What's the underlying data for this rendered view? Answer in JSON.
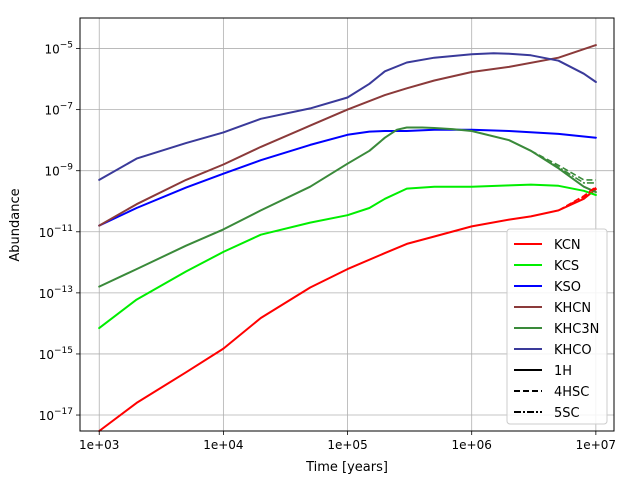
{
  "chart_data": {
    "type": "line",
    "title": "",
    "xlabel": "Time [years]",
    "ylabel": "Abundance",
    "x_scale": "log",
    "y_scale": "log",
    "xlim": [
      700,
      14000000
    ],
    "ylim": [
      3e-18,
      0.0001
    ],
    "x_ticks": [
      {
        "value": 1000,
        "label": "1e+03"
      },
      {
        "value": 10000,
        "label": "1e+04"
      },
      {
        "value": 100000,
        "label": "1e+05"
      },
      {
        "value": 1000000,
        "label": "1e+06"
      },
      {
        "value": 10000000,
        "label": "1e+07"
      }
    ],
    "y_ticks": [
      {
        "value": 1e-17,
        "base": "10",
        "exp": "−17"
      },
      {
        "value": 1e-15,
        "base": "10",
        "exp": "−15"
      },
      {
        "value": 1e-13,
        "base": "10",
        "exp": "−13"
      },
      {
        "value": 1e-11,
        "base": "10",
        "exp": "−11"
      },
      {
        "value": 1e-09,
        "base": "10",
        "exp": "−9"
      },
      {
        "value": 1e-07,
        "base": "10",
        "exp": "−7"
      },
      {
        "value": 1e-05,
        "base": "10",
        "exp": "−5"
      }
    ],
    "grid": true,
    "legend_position": "lower-right",
    "series": [
      {
        "name": "KCN",
        "color": "#ff0000",
        "x": [
          1000,
          2000,
          5000,
          10000,
          20000,
          50000,
          100000,
          200000,
          300000,
          500000,
          1000000,
          2000000,
          3000000,
          5000000,
          8000000,
          10000000
        ],
        "y": [
          3e-18,
          2.5e-17,
          2.5e-16,
          1.5e-15,
          1.5e-14,
          1.5e-13,
          6e-13,
          2e-12,
          4e-12,
          7e-12,
          1.5e-11,
          2.5e-11,
          3.2e-11,
          5e-11,
          1.2e-10,
          2.5e-10
        ]
      },
      {
        "name": "KCS",
        "color": "#00ee00",
        "x": [
          1000,
          2000,
          5000,
          10000,
          20000,
          50000,
          100000,
          150000,
          200000,
          300000,
          500000,
          1000000,
          2000000,
          3000000,
          5000000,
          8000000,
          10000000
        ],
        "y": [
          7e-15,
          6e-14,
          5e-13,
          2.2e-12,
          8e-12,
          2e-11,
          3.5e-11,
          6e-11,
          1.2e-10,
          2.6e-10,
          3e-10,
          3e-10,
          3.3e-10,
          3.5e-10,
          3.2e-10,
          2.2e-10,
          1.6e-10
        ]
      },
      {
        "name": "KSO",
        "color": "#0000ff",
        "x": [
          1000,
          2000,
          5000,
          10000,
          20000,
          50000,
          100000,
          150000,
          200000,
          300000,
          500000,
          1000000,
          2000000,
          5000000,
          10000000
        ],
        "y": [
          1.6e-11,
          6e-11,
          2.8e-10,
          8e-10,
          2.2e-09,
          7e-09,
          1.5e-08,
          1.9e-08,
          2e-08,
          2e-08,
          2.2e-08,
          2.2e-08,
          2e-08,
          1.6e-08,
          1.2e-08
        ]
      },
      {
        "name": "KHCN",
        "color": "#8b3a3a",
        "x": [
          1000,
          2000,
          5000,
          10000,
          20000,
          50000,
          100000,
          200000,
          300000,
          500000,
          1000000,
          2000000,
          5000000,
          10000000
        ],
        "y": [
          1.6e-11,
          8e-11,
          5e-10,
          1.6e-09,
          6e-09,
          3e-08,
          1e-07,
          3e-07,
          5e-07,
          9e-07,
          1.7e-06,
          2.5e-06,
          5e-06,
          1.3e-05
        ]
      },
      {
        "name": "KHC3N",
        "color": "#3a8a3a",
        "x": [
          1000,
          2000,
          5000,
          10000,
          20000,
          50000,
          100000,
          150000,
          200000,
          250000,
          300000,
          400000,
          500000,
          700000,
          1000000,
          2000000,
          3000000,
          5000000,
          8000000,
          10000000
        ],
        "y": [
          1.6e-13,
          6e-13,
          3.5e-12,
          1.2e-11,
          5e-11,
          3e-10,
          1.7e-09,
          4.5e-09,
          1.2e-08,
          2.2e-08,
          2.6e-08,
          2.6e-08,
          2.5e-08,
          2.3e-08,
          2e-08,
          1e-08,
          4.5e-09,
          1.2e-09,
          3e-10,
          2e-10
        ]
      },
      {
        "name": "KHCO",
        "color": "#3a3a9a",
        "x": [
          1000,
          2000,
          5000,
          10000,
          20000,
          50000,
          100000,
          150000,
          200000,
          300000,
          500000,
          1000000,
          1500000,
          2000000,
          3000000,
          5000000,
          8000000,
          10000000
        ],
        "y": [
          5e-10,
          2.5e-09,
          8e-09,
          1.8e-08,
          5e-08,
          1.1e-07,
          2.5e-07,
          7e-07,
          1.8e-06,
          3.5e-06,
          5e-06,
          6.5e-06,
          7e-06,
          6.8e-06,
          6e-06,
          4e-06,
          1.5e-06,
          8e-07
        ]
      }
    ],
    "variants": [
      {
        "name": "1H",
        "dash": ""
      },
      {
        "name": "4HSC",
        "dash": "6,3"
      },
      {
        "name": "5SC",
        "dash": "7,2,2,2"
      }
    ],
    "variant_deviation": [
      {
        "series": "KHC3N",
        "x": [
          3000000,
          5000000,
          8000000,
          10000000
        ],
        "4HSC": [
          4.5e-09,
          1.5e-09,
          5e-10,
          5e-10
        ],
        "5SC": [
          4.5e-09,
          1.3e-09,
          4e-10,
          4e-10
        ]
      },
      {
        "series": "KCN",
        "x": [
          5000000,
          8000000,
          10000000
        ],
        "4HSC": [
          5e-11,
          1.5e-10,
          3e-10
        ],
        "5SC": [
          5e-11,
          1.4e-10,
          2.8e-10
        ]
      }
    ]
  }
}
